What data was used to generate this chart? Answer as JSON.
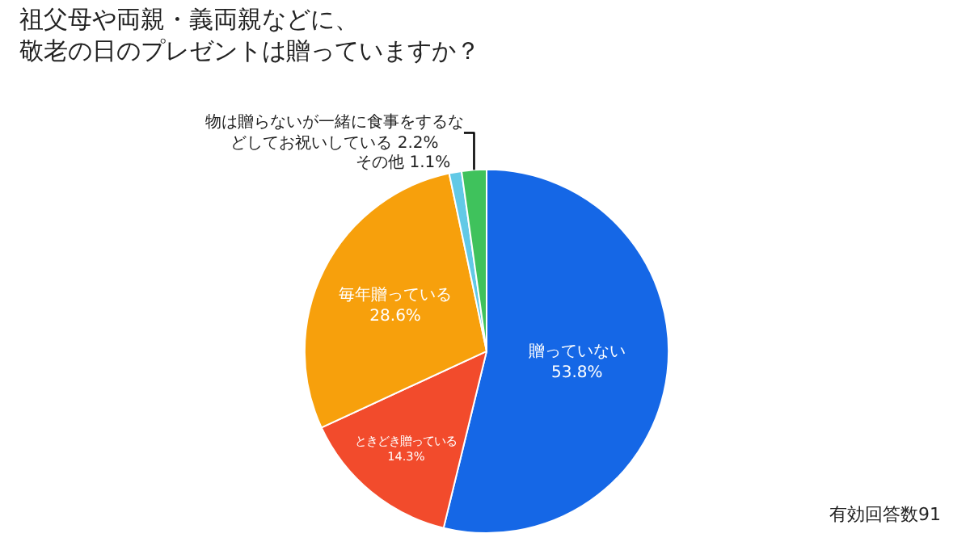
{
  "chart_data": {
    "type": "pie",
    "title": "祖父母や両親・義両親などに、敬老の日のプレゼントは贈っていますか？",
    "categories": [
      "贈っていない",
      "ときどき贈っている",
      "毎年贈っている",
      "その他",
      "物は贈らないが一緒に食事をするなどしてお祝いしている"
    ],
    "values": [
      53.8,
      14.3,
      28.6,
      1.1,
      2.2
    ],
    "value_labels": [
      "53.8%",
      "14.3%",
      "28.6%",
      "1.1%",
      "2.2%"
    ],
    "colors": [
      "#1567e6",
      "#f24b2c",
      "#f7a00c",
      "#62c9e6",
      "#3fc25c"
    ],
    "legend": false,
    "annotations": [
      "有効回答数91"
    ]
  }
}
